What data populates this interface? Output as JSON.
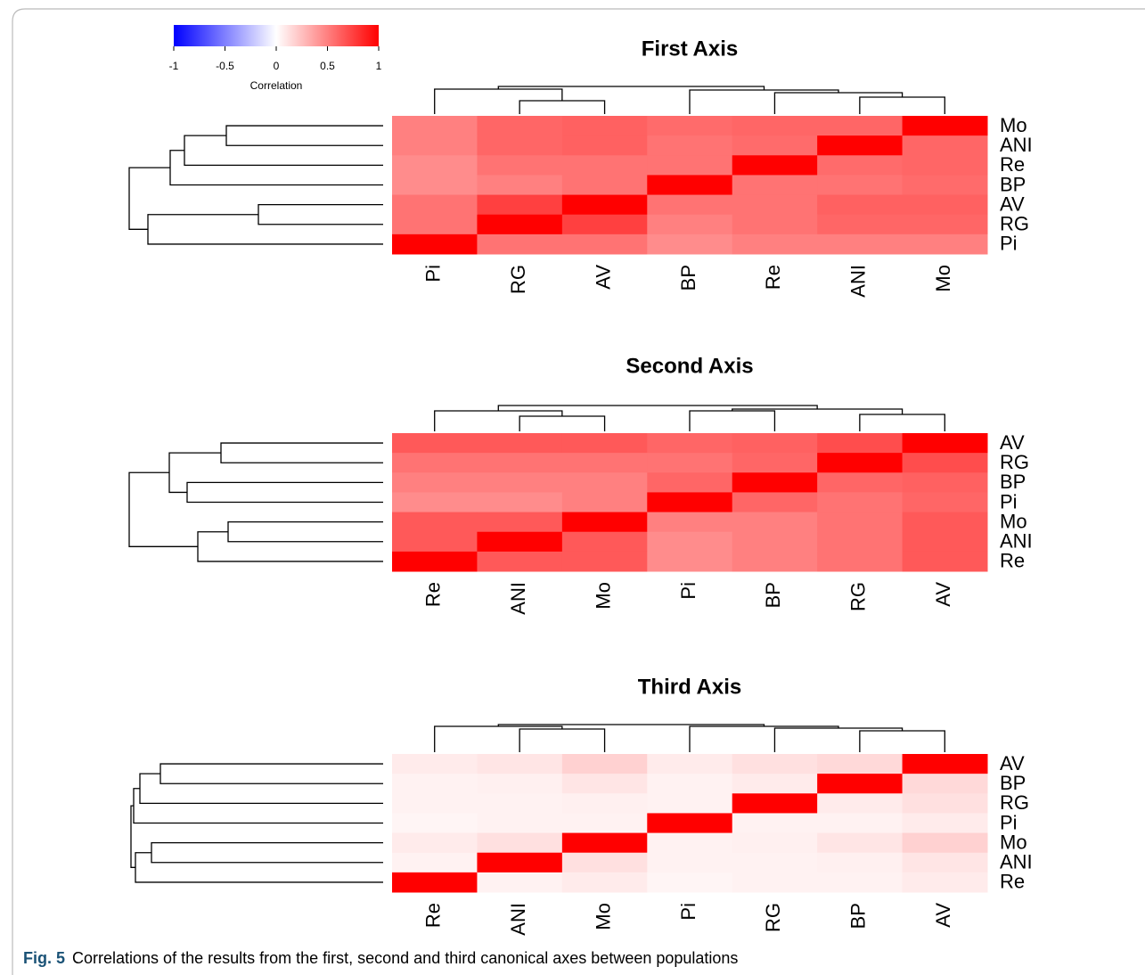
{
  "colorbar": {
    "title": "Correlation",
    "lim": [
      -1,
      1
    ],
    "ticks": [
      -1,
      -0.5,
      0,
      0.5,
      1
    ],
    "colors": [
      "#0000ff",
      "#ffffff",
      "#ff0000"
    ]
  },
  "chart_data": [
    {
      "type": "heatmap",
      "title": "First Axis",
      "x": [
        "Pi",
        "RG",
        "AV",
        "BP",
        "Re",
        "ANI",
        "Mo"
      ],
      "y": [
        "Mo",
        "ANI",
        "Re",
        "BP",
        "AV",
        "RG",
        "Pi"
      ],
      "values": [
        [
          0.5,
          0.6,
          0.62,
          0.58,
          0.6,
          0.6,
          1
        ],
        [
          0.5,
          0.6,
          0.62,
          0.55,
          0.58,
          1,
          0.6
        ],
        [
          0.45,
          0.55,
          0.55,
          0.55,
          1,
          0.58,
          0.6
        ],
        [
          0.45,
          0.5,
          0.55,
          1,
          0.55,
          0.55,
          0.58
        ],
        [
          0.55,
          0.75,
          1,
          0.55,
          0.55,
          0.62,
          0.62
        ],
        [
          0.55,
          1,
          0.75,
          0.5,
          0.55,
          0.6,
          0.6
        ],
        [
          1,
          0.55,
          0.55,
          0.45,
          0.5,
          0.5,
          0.5
        ]
      ]
    },
    {
      "type": "heatmap",
      "title": "Second Axis",
      "x": [
        "Re",
        "ANI",
        "Mo",
        "Pi",
        "BP",
        "RG",
        "AV"
      ],
      "y": [
        "AV",
        "RG",
        "BP",
        "Pi",
        "Mo",
        "ANI",
        "Re"
      ],
      "values": [
        [
          0.65,
          0.65,
          0.65,
          0.6,
          0.62,
          0.7,
          1
        ],
        [
          0.55,
          0.55,
          0.55,
          0.55,
          0.6,
          1,
          0.7
        ],
        [
          0.5,
          0.5,
          0.5,
          0.6,
          1,
          0.6,
          0.62
        ],
        [
          0.45,
          0.45,
          0.5,
          1,
          0.6,
          0.55,
          0.6
        ],
        [
          0.65,
          0.65,
          1,
          0.5,
          0.5,
          0.55,
          0.65
        ],
        [
          0.65,
          1,
          0.65,
          0.45,
          0.5,
          0.55,
          0.65
        ],
        [
          1,
          0.65,
          0.65,
          0.45,
          0.5,
          0.55,
          0.65
        ]
      ]
    },
    {
      "type": "heatmap",
      "title": "Third Axis",
      "x": [
        "Re",
        "ANI",
        "Mo",
        "Pi",
        "RG",
        "BP",
        "AV"
      ],
      "y": [
        "AV",
        "BP",
        "RG",
        "Pi",
        "Mo",
        "ANI",
        "Re"
      ],
      "values": [
        [
          0.08,
          0.1,
          0.18,
          0.08,
          0.12,
          0.15,
          1
        ],
        [
          0.05,
          0.06,
          0.1,
          0.05,
          0.08,
          1,
          0.15
        ],
        [
          0.05,
          0.05,
          0.06,
          0.05,
          1,
          0.08,
          0.12
        ],
        [
          0.04,
          0.05,
          0.05,
          1,
          0.05,
          0.05,
          0.08
        ],
        [
          0.08,
          0.12,
          1,
          0.05,
          0.06,
          0.1,
          0.18
        ],
        [
          0.05,
          1,
          0.12,
          0.05,
          0.05,
          0.06,
          0.1
        ],
        [
          1,
          0.05,
          0.08,
          0.04,
          0.05,
          0.05,
          0.08
        ]
      ]
    }
  ],
  "caption": {
    "label": "Fig. 5",
    "text": "Correlations of the results from the first, second and third canonical axes between populations"
  }
}
